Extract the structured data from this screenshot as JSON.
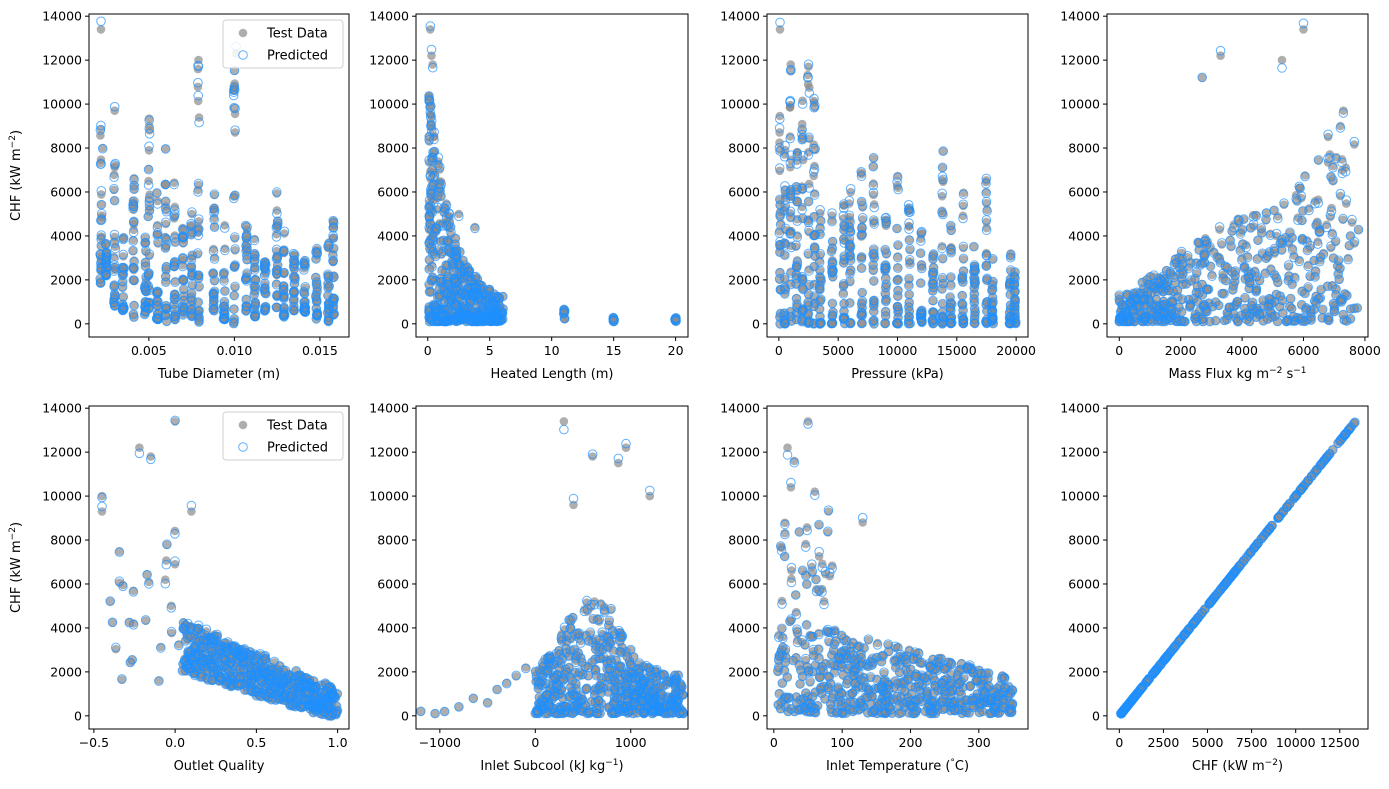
{
  "colors": {
    "test": "#8c8c8c",
    "predicted": "#1e90ff"
  },
  "legend": {
    "test_label": "Test Data",
    "predicted_label": "Predicted"
  },
  "chart_data": [
    {
      "type": "scatter",
      "xlabel": "Tube Diameter (m)",
      "ylabel": "CHF (kW m$^{-2}$)",
      "xlim": [
        0.0015,
        0.0167
      ],
      "ylim": [
        -600,
        14100
      ],
      "xticks": [
        0.005,
        0.01,
        0.015
      ],
      "xtick_labels": [
        "0.005",
        "0.010",
        "0.015"
      ],
      "yticks": [
        0,
        2000,
        4000,
        6000,
        8000,
        10000,
        12000,
        14000
      ],
      "legend": "top-right",
      "shape": "columns",
      "columns": [
        {
          "x": 0.0022,
          "lo": 1500,
          "hi": 9300
        },
        {
          "x": 0.0025,
          "lo": 2200,
          "hi": 3700
        },
        {
          "x": 0.003,
          "lo": 800,
          "hi": 9000
        },
        {
          "x": 0.0035,
          "lo": 600,
          "hi": 4200
        },
        {
          "x": 0.0041,
          "lo": 300,
          "hi": 7300
        },
        {
          "x": 0.0048,
          "lo": 400,
          "hi": 4500
        },
        {
          "x": 0.005,
          "lo": 700,
          "hi": 10000
        },
        {
          "x": 0.0055,
          "lo": 200,
          "hi": 6000
        },
        {
          "x": 0.006,
          "lo": 100,
          "hi": 9300
        },
        {
          "x": 0.0065,
          "lo": 200,
          "hi": 6700
        },
        {
          "x": 0.007,
          "lo": 400,
          "hi": 5500
        },
        {
          "x": 0.0075,
          "lo": 300,
          "hi": 6200
        },
        {
          "x": 0.0079,
          "lo": 0,
          "hi": 11900
        },
        {
          "x": 0.0088,
          "lo": 500,
          "hi": 6000
        },
        {
          "x": 0.0094,
          "lo": 200,
          "hi": 4500
        },
        {
          "x": 0.01,
          "lo": 0,
          "hi": 12300
        },
        {
          "x": 0.0107,
          "lo": 600,
          "hi": 4700
        },
        {
          "x": 0.0112,
          "lo": 300,
          "hi": 4200
        },
        {
          "x": 0.0118,
          "lo": 600,
          "hi": 3000
        },
        {
          "x": 0.0125,
          "lo": 500,
          "hi": 6000
        },
        {
          "x": 0.0129,
          "lo": 300,
          "hi": 4300
        },
        {
          "x": 0.0135,
          "lo": 600,
          "hi": 3200
        },
        {
          "x": 0.0141,
          "lo": 500,
          "hi": 3000
        },
        {
          "x": 0.0148,
          "lo": 200,
          "hi": 3600
        },
        {
          "x": 0.0155,
          "lo": 100,
          "hi": 3700
        },
        {
          "x": 0.0158,
          "lo": 300,
          "hi": 5100
        }
      ],
      "outliers": [
        [
          0.0022,
          13400
        ],
        [
          0.0023,
          8000
        ],
        [
          0.003,
          9700
        ],
        [
          0.0079,
          12000
        ],
        [
          0.0101,
          12300
        ]
      ]
    },
    {
      "type": "scatter",
      "xlabel": "Heated Length (m)",
      "ylabel": "",
      "xlim": [
        -0.95,
        21.0
      ],
      "ylim": [
        -600,
        14100
      ],
      "xticks": [
        0,
        5,
        10,
        15,
        20
      ],
      "xtick_labels": [
        "0",
        "5",
        "10",
        "15",
        "20"
      ],
      "yticks": [
        0,
        2000,
        4000,
        6000,
        8000,
        10000,
        12000,
        14000
      ],
      "shape": "decay",
      "domain": [
        0.1,
        6.1
      ],
      "peak": 10500,
      "decay": 0.55,
      "fixed_columns": [
        {
          "x": 11,
          "lo": 200,
          "hi": 700
        },
        {
          "x": 15,
          "lo": 100,
          "hi": 400
        },
        {
          "x": 20,
          "lo": 100,
          "hi": 300
        }
      ],
      "outliers": [
        [
          0.2,
          13400
        ],
        [
          0.3,
          12200
        ],
        [
          0.4,
          11800
        ],
        [
          2.5,
          5000
        ],
        [
          3.8,
          4400
        ]
      ]
    },
    {
      "type": "scatter",
      "xlabel": "Pressure (kPa)",
      "ylabel": "",
      "xlim": [
        -1000,
        21000
      ],
      "ylim": [
        -600,
        14100
      ],
      "xticks": [
        0,
        5000,
        10000,
        15000,
        20000
      ],
      "xtick_labels": [
        "0",
        "5000",
        "10000",
        "15000",
        "20000"
      ],
      "yticks": [
        0,
        2000,
        4000,
        6000,
        8000,
        10000,
        12000,
        14000
      ],
      "shape": "columns",
      "columns": [
        {
          "x": 100,
          "lo": 0,
          "hi": 9700
        },
        {
          "x": 500,
          "lo": 0,
          "hi": 8500
        },
        {
          "x": 1000,
          "lo": 0,
          "hi": 11800
        },
        {
          "x": 1500,
          "lo": 0,
          "hi": 8200
        },
        {
          "x": 2000,
          "lo": 0,
          "hi": 10300
        },
        {
          "x": 2500,
          "lo": 0,
          "hi": 11600
        },
        {
          "x": 3000,
          "lo": 0,
          "hi": 12200
        },
        {
          "x": 3500,
          "lo": 0,
          "hi": 5300
        },
        {
          "x": 4500,
          "lo": 0,
          "hi": 5100
        },
        {
          "x": 5500,
          "lo": 0,
          "hi": 5500
        },
        {
          "x": 6000,
          "lo": 0,
          "hi": 6000
        },
        {
          "x": 7000,
          "lo": 0,
          "hi": 7200
        },
        {
          "x": 8000,
          "lo": 0,
          "hi": 8000
        },
        {
          "x": 9000,
          "lo": 0,
          "hi": 5500
        },
        {
          "x": 10000,
          "lo": 0,
          "hi": 6800
        },
        {
          "x": 11000,
          "lo": 0,
          "hi": 6000
        },
        {
          "x": 12000,
          "lo": 0,
          "hi": 4500
        },
        {
          "x": 13000,
          "lo": 0,
          "hi": 4200
        },
        {
          "x": 13800,
          "lo": 0,
          "hi": 10000
        },
        {
          "x": 14500,
          "lo": 0,
          "hi": 4500
        },
        {
          "x": 15500,
          "lo": 0,
          "hi": 6300
        },
        {
          "x": 16500,
          "lo": 0,
          "hi": 3600
        },
        {
          "x": 17500,
          "lo": 0,
          "hi": 7400
        },
        {
          "x": 18000,
          "lo": 0,
          "hi": 3000
        },
        {
          "x": 19500,
          "lo": 0,
          "hi": 3700
        },
        {
          "x": 19900,
          "lo": 0,
          "hi": 2400
        }
      ],
      "outliers": [
        [
          100,
          13400
        ],
        [
          1000,
          11800
        ],
        [
          2500,
          11700
        ]
      ]
    },
    {
      "type": "scatter",
      "xlabel": "Mass Flux kg m$^{-2}$ s$^{-1}$",
      "ylabel": "",
      "xlim": [
        -400,
        8100
      ],
      "ylim": [
        -600,
        14100
      ],
      "xticks": [
        0,
        2000,
        4000,
        6000,
        8000
      ],
      "xtick_labels": [
        "0",
        "2000",
        "4000",
        "6000",
        "8000"
      ],
      "yticks": [
        0,
        2000,
        4000,
        6000,
        8000,
        10000,
        12000,
        14000
      ],
      "shape": "cone",
      "domain": [
        0,
        7800
      ],
      "outliers": [
        [
          6000,
          13400
        ],
        [
          5300,
          12000
        ],
        [
          3300,
          12200
        ],
        [
          2700,
          11200
        ],
        [
          7300,
          9700
        ],
        [
          7200,
          9000
        ],
        [
          6800,
          8500
        ]
      ]
    },
    {
      "type": "scatter",
      "xlabel": "Outlet Quality",
      "ylabel": "CHF (kW m$^{-2}$)",
      "xlim": [
        -0.53,
        1.07
      ],
      "ylim": [
        -600,
        14100
      ],
      "xticks": [
        -0.5,
        0.0,
        0.5,
        1.0
      ],
      "xtick_labels": [
        "−0.5",
        "0.0",
        "0.5",
        "1.0"
      ],
      "yticks": [
        0,
        2000,
        4000,
        6000,
        8000,
        10000,
        12000,
        14000
      ],
      "legend": "top-right",
      "shape": "negslope",
      "domain": [
        -0.47,
        1.0
      ],
      "outliers": [
        [
          0.0,
          13400
        ],
        [
          -0.22,
          12200
        ],
        [
          -0.15,
          11800
        ],
        [
          -0.45,
          10000
        ],
        [
          -0.45,
          9300
        ],
        [
          0.1,
          9300
        ]
      ]
    },
    {
      "type": "scatter",
      "xlabel": "Inlet Subcool (kJ kg$^{-1}$)",
      "ylabel": "",
      "xlim": [
        -1250,
        1600
      ],
      "ylim": [
        -600,
        14100
      ],
      "xticks": [
        -1000,
        0,
        1000
      ],
      "xtick_labels": [
        "−1000",
        "0",
        "1000"
      ],
      "yticks": [
        0,
        2000,
        4000,
        6000,
        8000,
        10000,
        12000,
        14000
      ],
      "shape": "hump",
      "domain": [
        0,
        1550
      ],
      "tail": [
        [
          -1200,
          200
        ],
        [
          -1050,
          100
        ],
        [
          -950,
          200
        ],
        [
          -800,
          400
        ],
        [
          -650,
          800
        ],
        [
          -500,
          600
        ],
        [
          -400,
          1200
        ],
        [
          -300,
          1500
        ],
        [
          -200,
          1800
        ],
        [
          -100,
          2200
        ]
      ],
      "outliers": [
        [
          300,
          13400
        ],
        [
          950,
          12200
        ],
        [
          870,
          11500
        ],
        [
          600,
          11800
        ],
        [
          1200,
          10000
        ],
        [
          400,
          9600
        ]
      ]
    },
    {
      "type": "scatter",
      "xlabel": "Inlet Temperature ($^{\\circ}$C)",
      "ylabel": "",
      "xlim": [
        -10,
        372
      ],
      "ylim": [
        -600,
        14100
      ],
      "xticks": [
        0,
        100,
        200,
        300
      ],
      "xtick_labels": [
        "0",
        "100",
        "200",
        "300"
      ],
      "yticks": [
        0,
        2000,
        4000,
        6000,
        8000,
        10000,
        12000,
        14000
      ],
      "shape": "tempband",
      "domain": [
        5,
        350
      ],
      "outliers": [
        [
          50,
          13400
        ],
        [
          20,
          12200
        ],
        [
          30,
          11600
        ],
        [
          60,
          10200
        ],
        [
          25,
          10400
        ],
        [
          80,
          9300
        ],
        [
          130,
          8800
        ]
      ]
    },
    {
      "type": "scatter",
      "xlabel": "CHF (kW m$^{-2}$)",
      "ylabel": "",
      "xlim": [
        -700,
        14100
      ],
      "ylim": [
        -600,
        14100
      ],
      "xticks": [
        0,
        2500,
        5000,
        7500,
        10000,
        12500
      ],
      "xtick_labels": [
        "0",
        "2500",
        "5000",
        "7500",
        "10000",
        "12500"
      ],
      "yticks": [
        0,
        2000,
        4000,
        6000,
        8000,
        10000,
        12000,
        14000
      ],
      "shape": "diagonal",
      "domain": [
        100,
        13400
      ]
    }
  ]
}
